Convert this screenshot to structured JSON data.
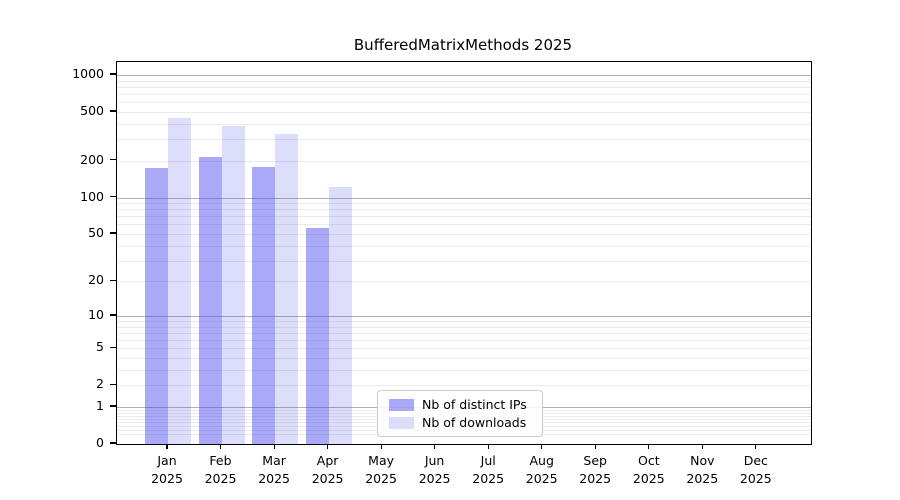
{
  "title": "BufferedMatrixMethods 2025",
  "colors": {
    "bar_distinct_ips": "rgba(64,64,240,0.45)",
    "bar_downloads": "rgba(64,64,240,0.18)",
    "grid_major": "#b3b3b3",
    "grid_minor": "#ebebeb",
    "axis": "#000000",
    "legend_border": "#cccccc"
  },
  "chart_data": {
    "type": "bar",
    "title": "BufferedMatrixMethods 2025",
    "xlabel": "",
    "ylabel": "",
    "scale": "log1p",
    "grid": "horizontal major+minor, log decades",
    "legend_position": "inside bottom-center",
    "months": [
      "Jan",
      "Feb",
      "Mar",
      "Apr",
      "May",
      "Jun",
      "Jul",
      "Aug",
      "Sep",
      "Oct",
      "Nov",
      "Dec"
    ],
    "year_label": "2025",
    "y_ticks": [
      0,
      1,
      2,
      5,
      10,
      20,
      50,
      100,
      200,
      500,
      1000
    ],
    "ylim": [
      0,
      1280
    ],
    "series": [
      {
        "name": "Nb of distinct IPs",
        "values": [
          176,
          215,
          178,
          56,
          null,
          null,
          null,
          null,
          null,
          null,
          null,
          null
        ]
      },
      {
        "name": "Nb of downloads",
        "values": [
          449,
          387,
          329,
          121,
          null,
          null,
          null,
          null,
          null,
          null,
          null,
          null
        ]
      }
    ]
  }
}
